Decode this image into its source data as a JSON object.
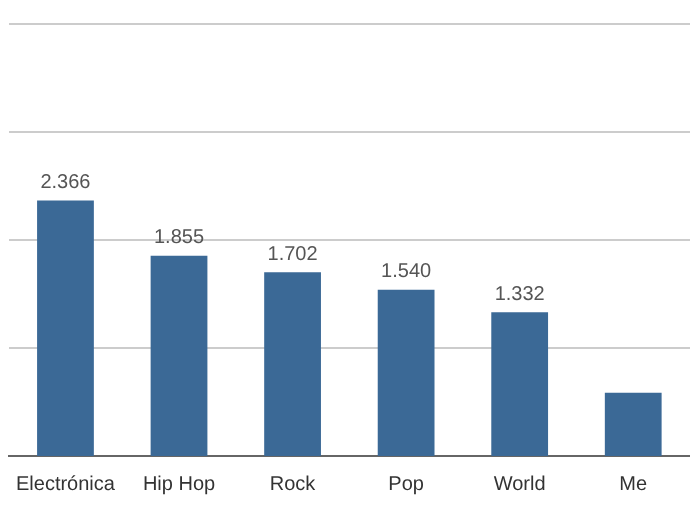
{
  "chart_data": {
    "type": "bar",
    "categories": [
      "Electrónica",
      "Hip Hop",
      "Rock",
      "Pop",
      "World",
      "Me"
    ],
    "values": [
      2366,
      1855,
      1702,
      1540,
      1332,
      585
    ],
    "value_labels": [
      "2.366",
      "1.855",
      "1.702",
      "1.540",
      "1.332",
      null
    ],
    "color": "#3b6996",
    "ylim": [
      0,
      4000
    ],
    "yticks": [
      {
        "value": 1000,
        "label": null
      },
      {
        "value": 2000,
        "label": null
      },
      {
        "value": 3000,
        "label": null
      },
      {
        "value": 4000,
        "label": null
      }
    ],
    "grid": "y",
    "tick_labels": "x",
    "legend": false
  }
}
